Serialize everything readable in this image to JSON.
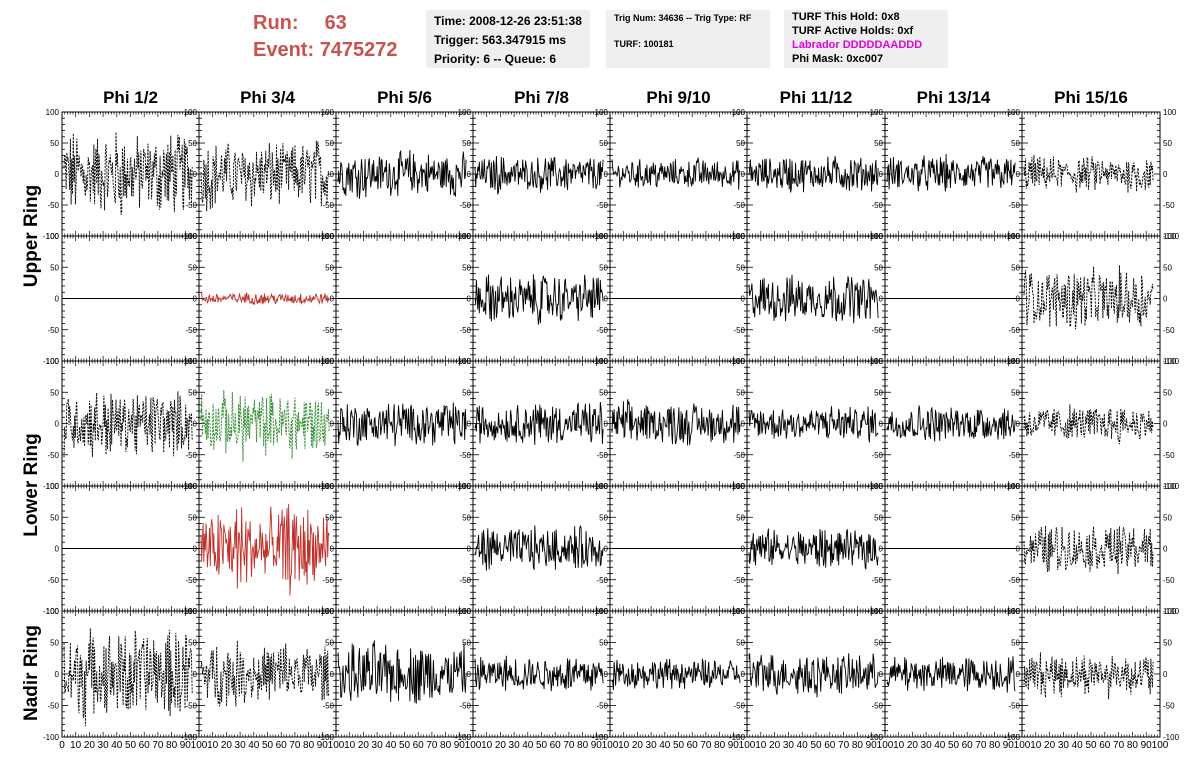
{
  "run": {
    "run_label": "Run:",
    "run_value": "63",
    "event_label": "Event:",
    "event_value": "7475272"
  },
  "info_time": {
    "time": "Time: 2008-12-26 23:51:38",
    "trigger": "Trigger: 563.347915 ms",
    "priority": "Priority: 6 -- Queue: 6"
  },
  "info_trig": {
    "trig": "Trig Num: 34636 -- Trig Type: RF",
    "turf": "TURF: 100181"
  },
  "info_turf": {
    "this_hold": "TURF This Hold: 0x8",
    "active_holds": "TURF Active Holds: 0xf",
    "labrador": "Labrador DDDDDAADDD",
    "phi_mask": "Phi Mask: 0xc007"
  },
  "columns": [
    "Phi 1/2",
    "Phi 3/4",
    "Phi 5/6",
    "Phi 7/8",
    "Phi 9/10",
    "Phi 11/12",
    "Phi 13/14",
    "Phi 15/16"
  ],
  "rows": [
    "Upper Ring",
    "Lower Ring",
    "Nadir Ring"
  ],
  "colors": {
    "run_text": "#c9524d",
    "magenta": "#e000e0",
    "red_trace": "#c0302a",
    "green_trace": "#2e8b2e"
  },
  "chart_data": {
    "type": "line",
    "title": "",
    "ylim": [
      -100,
      100
    ],
    "xlim": [
      0,
      100
    ],
    "y_ticks": [
      "100",
      "50",
      "0",
      "-50",
      "-100"
    ],
    "x_ticks": [
      "0",
      "10",
      "20",
      "30",
      "40",
      "50",
      "60",
      "70",
      "80",
      "90",
      "100"
    ],
    "grid": false,
    "panels": [
      [
        {
          "amp": 28,
          "style": "dash",
          "color": "black"
        },
        {
          "amp": 22,
          "style": "dash",
          "color": "black"
        },
        {
          "amp": 15,
          "style": "solid",
          "color": "black"
        },
        {
          "amp": 12,
          "style": "solid",
          "color": "black"
        },
        {
          "amp": 10,
          "style": "solid",
          "color": "black"
        },
        {
          "amp": 12,
          "style": "solid",
          "color": "black"
        },
        {
          "amp": 12,
          "style": "solid",
          "color": "black"
        },
        {
          "amp": 12,
          "style": "dash",
          "color": "black"
        }
      ],
      [
        {
          "amp": 0,
          "style": "flat",
          "color": "black"
        },
        {
          "amp": 4,
          "style": "solid",
          "color": "red"
        },
        {
          "amp": 0,
          "style": "flat",
          "color": "black"
        },
        {
          "amp": 16,
          "style": "solid",
          "color": "black"
        },
        {
          "amp": 0,
          "style": "flat",
          "color": "black"
        },
        {
          "amp": 16,
          "style": "solid",
          "color": "black"
        },
        {
          "amp": 0,
          "style": "flat",
          "color": "black"
        },
        {
          "amp": 20,
          "style": "dash",
          "color": "black"
        }
      ],
      [
        {
          "amp": 22,
          "style": "dash",
          "color": "black"
        },
        {
          "amp": 22,
          "style": "dash",
          "color": "green"
        },
        {
          "amp": 15,
          "style": "solid",
          "color": "black"
        },
        {
          "amp": 14,
          "style": "solid",
          "color": "black"
        },
        {
          "amp": 14,
          "style": "solid",
          "color": "black"
        },
        {
          "amp": 12,
          "style": "solid",
          "color": "black"
        },
        {
          "amp": 12,
          "style": "solid",
          "color": "black"
        },
        {
          "amp": 12,
          "style": "dash",
          "color": "black"
        }
      ],
      [
        {
          "amp": 0,
          "style": "flat",
          "color": "black"
        },
        {
          "amp": 28,
          "style": "solid",
          "color": "red"
        },
        {
          "amp": 0,
          "style": "flat",
          "color": "black"
        },
        {
          "amp": 14,
          "style": "solid",
          "color": "black"
        },
        {
          "amp": 0,
          "style": "flat",
          "color": "black"
        },
        {
          "amp": 13,
          "style": "solid",
          "color": "black"
        },
        {
          "amp": 0,
          "style": "flat",
          "color": "black"
        },
        {
          "amp": 16,
          "style": "dash",
          "color": "black"
        }
      ],
      [
        {
          "amp": 30,
          "style": "dash",
          "color": "black"
        },
        {
          "amp": 20,
          "style": "dash",
          "color": "black"
        },
        {
          "amp": 20,
          "style": "solid",
          "color": "black"
        },
        {
          "amp": 12,
          "style": "solid",
          "color": "black"
        },
        {
          "amp": 10,
          "style": "solid",
          "color": "black"
        },
        {
          "amp": 14,
          "style": "solid",
          "color": "black"
        },
        {
          "amp": 12,
          "style": "solid",
          "color": "black"
        },
        {
          "amp": 14,
          "style": "dash",
          "color": "black"
        }
      ]
    ]
  }
}
